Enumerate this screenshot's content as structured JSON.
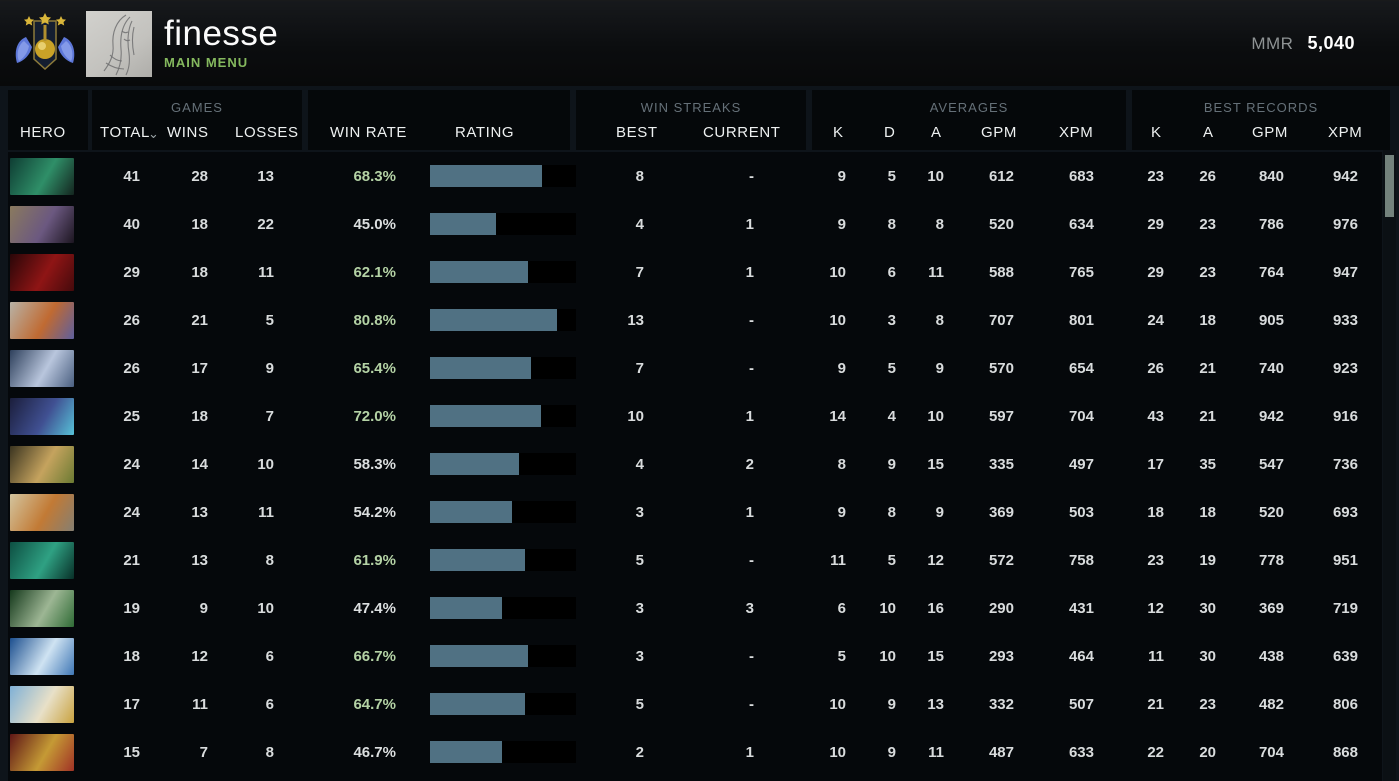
{
  "topbar": {
    "player_name": "finesse",
    "menu_label": "MAIN MENU",
    "mmr_label": "MMR",
    "mmr_value": "5,040"
  },
  "colors": {
    "accent_green_text": "#b4d2a5",
    "menu_green": "#85b95e",
    "bar_fill": "#507183",
    "bar_background": "#000000",
    "number_text": "#d9dcdd",
    "group_label": "#657078",
    "scrollbar_thumb": "#73827c"
  },
  "table": {
    "groups": {
      "games": "GAMES",
      "win_streaks": "WIN STREAKS",
      "averages": "AVERAGES",
      "best_records": "BEST RECORDS"
    },
    "headers": {
      "hero": "HERO",
      "total": "TOTAL",
      "wins": "WINS",
      "losses": "LOSSES",
      "win_rate": "WIN RATE",
      "rating": "RATING",
      "best": "BEST",
      "current": "CURRENT",
      "k": "K",
      "d": "D",
      "a": "A",
      "gpm": "GPM",
      "xpm": "XPM",
      "k2": "K",
      "a2": "A",
      "gpm2": "GPM",
      "xpm2": "XPM"
    },
    "rows": [
      {
        "hero": {
          "id": "1",
          "colors": [
            "#0e3d33",
            "#2f8f68",
            "#14251f"
          ]
        },
        "total": "41",
        "wins": "28",
        "losses": "13",
        "win_rate": "68.3%",
        "win_rate_positive": true,
        "rating_fill_pct": 77,
        "streak_best": "8",
        "streak_current": "-",
        "avg": {
          "k": "9",
          "d": "5",
          "a": "10",
          "gpm": "612",
          "xpm": "683"
        },
        "best": {
          "k": "23",
          "a": "26",
          "gpm": "840",
          "xpm": "942"
        }
      },
      {
        "hero": {
          "id": "2",
          "colors": [
            "#8a7a5e",
            "#6b5880",
            "#1c1520"
          ]
        },
        "total": "40",
        "wins": "18",
        "losses": "22",
        "win_rate": "45.0%",
        "win_rate_positive": false,
        "rating_fill_pct": 45,
        "streak_best": "4",
        "streak_current": "1",
        "avg": {
          "k": "9",
          "d": "8",
          "a": "8",
          "gpm": "520",
          "xpm": "634"
        },
        "best": {
          "k": "29",
          "a": "23",
          "gpm": "786",
          "xpm": "976"
        }
      },
      {
        "hero": {
          "id": "3",
          "colors": [
            "#2a0608",
            "#8f1515",
            "#450a0c"
          ]
        },
        "total": "29",
        "wins": "18",
        "losses": "11",
        "win_rate": "62.1%",
        "win_rate_positive": true,
        "rating_fill_pct": 67,
        "streak_best": "7",
        "streak_current": "1",
        "avg": {
          "k": "10",
          "d": "6",
          "a": "11",
          "gpm": "588",
          "xpm": "765"
        },
        "best": {
          "k": "29",
          "a": "23",
          "gpm": "764",
          "xpm": "947"
        }
      },
      {
        "hero": {
          "id": "4",
          "colors": [
            "#b8b2a6",
            "#c06a32",
            "#5e5f9e"
          ]
        },
        "total": "26",
        "wins": "21",
        "losses": "5",
        "win_rate": "80.8%",
        "win_rate_positive": true,
        "rating_fill_pct": 87,
        "streak_best": "13",
        "streak_current": "-",
        "avg": {
          "k": "10",
          "d": "3",
          "a": "8",
          "gpm": "707",
          "xpm": "801"
        },
        "best": {
          "k": "24",
          "a": "18",
          "gpm": "905",
          "xpm": "933"
        }
      },
      {
        "hero": {
          "id": "5",
          "colors": [
            "#2e405c",
            "#b9c6dd",
            "#4a5f80"
          ]
        },
        "total": "26",
        "wins": "17",
        "losses": "9",
        "win_rate": "65.4%",
        "win_rate_positive": true,
        "rating_fill_pct": 69,
        "streak_best": "7",
        "streak_current": "-",
        "avg": {
          "k": "9",
          "d": "5",
          "a": "9",
          "gpm": "570",
          "xpm": "654"
        },
        "best": {
          "k": "26",
          "a": "21",
          "gpm": "740",
          "xpm": "923"
        }
      },
      {
        "hero": {
          "id": "6",
          "colors": [
            "#1b1e3c",
            "#405092",
            "#57c2d8"
          ]
        },
        "total": "25",
        "wins": "18",
        "losses": "7",
        "win_rate": "72.0%",
        "win_rate_positive": true,
        "rating_fill_pct": 76,
        "streak_best": "10",
        "streak_current": "1",
        "avg": {
          "k": "14",
          "d": "4",
          "a": "10",
          "gpm": "597",
          "xpm": "704"
        },
        "best": {
          "k": "43",
          "a": "21",
          "gpm": "942",
          "xpm": "916"
        }
      },
      {
        "hero": {
          "id": "7",
          "colors": [
            "#3a3420",
            "#c5a35e",
            "#6b7a32"
          ]
        },
        "total": "24",
        "wins": "14",
        "losses": "10",
        "win_rate": "58.3%",
        "win_rate_positive": false,
        "rating_fill_pct": 61,
        "streak_best": "4",
        "streak_current": "2",
        "avg": {
          "k": "8",
          "d": "9",
          "a": "15",
          "gpm": "335",
          "xpm": "497"
        },
        "best": {
          "k": "17",
          "a": "35",
          "gpm": "547",
          "xpm": "736"
        }
      },
      {
        "hero": {
          "id": "8",
          "colors": [
            "#d3c49e",
            "#c27a35",
            "#857f72"
          ]
        },
        "total": "24",
        "wins": "13",
        "losses": "11",
        "win_rate": "54.2%",
        "win_rate_positive": false,
        "rating_fill_pct": 56,
        "streak_best": "3",
        "streak_current": "1",
        "avg": {
          "k": "9",
          "d": "8",
          "a": "9",
          "gpm": "369",
          "xpm": "503"
        },
        "best": {
          "k": "18",
          "a": "18",
          "gpm": "520",
          "xpm": "693"
        }
      },
      {
        "hero": {
          "id": "9",
          "colors": [
            "#0d4f42",
            "#2fa183",
            "#083028"
          ]
        },
        "total": "21",
        "wins": "13",
        "losses": "8",
        "win_rate": "61.9%",
        "win_rate_positive": true,
        "rating_fill_pct": 65,
        "streak_best": "5",
        "streak_current": "-",
        "avg": {
          "k": "11",
          "d": "5",
          "a": "12",
          "gpm": "572",
          "xpm": "758"
        },
        "best": {
          "k": "23",
          "a": "19",
          "gpm": "778",
          "xpm": "951"
        }
      },
      {
        "hero": {
          "id": "10",
          "colors": [
            "#15391c",
            "#9db694",
            "#2f6b35"
          ]
        },
        "total": "19",
        "wins": "9",
        "losses": "10",
        "win_rate": "47.4%",
        "win_rate_positive": false,
        "rating_fill_pct": 49,
        "streak_best": "3",
        "streak_current": "3",
        "avg": {
          "k": "6",
          "d": "10",
          "a": "16",
          "gpm": "290",
          "xpm": "431"
        },
        "best": {
          "k": "12",
          "a": "30",
          "gpm": "369",
          "xpm": "719"
        }
      },
      {
        "hero": {
          "id": "11",
          "colors": [
            "#1c4f8f",
            "#cfe3f2",
            "#3f77b5"
          ]
        },
        "total": "18",
        "wins": "12",
        "losses": "6",
        "win_rate": "66.7%",
        "win_rate_positive": true,
        "rating_fill_pct": 67,
        "streak_best": "3",
        "streak_current": "-",
        "avg": {
          "k": "5",
          "d": "10",
          "a": "15",
          "gpm": "293",
          "xpm": "464"
        },
        "best": {
          "k": "11",
          "a": "30",
          "gpm": "438",
          "xpm": "639"
        }
      },
      {
        "hero": {
          "id": "12",
          "colors": [
            "#7fb0d6",
            "#e8e0c8",
            "#c9a23f"
          ]
        },
        "total": "17",
        "wins": "11",
        "losses": "6",
        "win_rate": "64.7%",
        "win_rate_positive": true,
        "rating_fill_pct": 65,
        "streak_best": "5",
        "streak_current": "-",
        "avg": {
          "k": "10",
          "d": "9",
          "a": "13",
          "gpm": "332",
          "xpm": "507"
        },
        "best": {
          "k": "21",
          "a": "23",
          "gpm": "482",
          "xpm": "806"
        }
      },
      {
        "hero": {
          "id": "13",
          "colors": [
            "#5e1616",
            "#c59a35",
            "#a03226"
          ]
        },
        "total": "15",
        "wins": "7",
        "losses": "8",
        "win_rate": "46.7%",
        "win_rate_positive": false,
        "rating_fill_pct": 49,
        "streak_best": "2",
        "streak_current": "1",
        "avg": {
          "k": "10",
          "d": "9",
          "a": "11",
          "gpm": "487",
          "xpm": "633"
        },
        "best": {
          "k": "22",
          "a": "20",
          "gpm": "704",
          "xpm": "868"
        }
      }
    ]
  }
}
